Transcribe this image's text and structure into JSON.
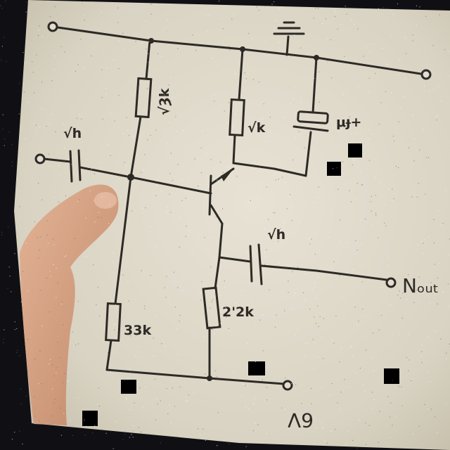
{
  "labels": {
    "r_top_left": "√Ȝk",
    "r_collector": "√k",
    "c_input": "√h",
    "c_bypass": "μɟ+",
    "c_output": "√h",
    "r_emitter": "2'2k",
    "r_bottom_left": "33k",
    "v_out": "Nₒᵤₜ",
    "supply": "6V"
  },
  "scene": {
    "background_color": "#101014",
    "paper_color": "#e2ddd0",
    "ink_color": "#2d2a26",
    "skin_color": "#d8a488"
  }
}
